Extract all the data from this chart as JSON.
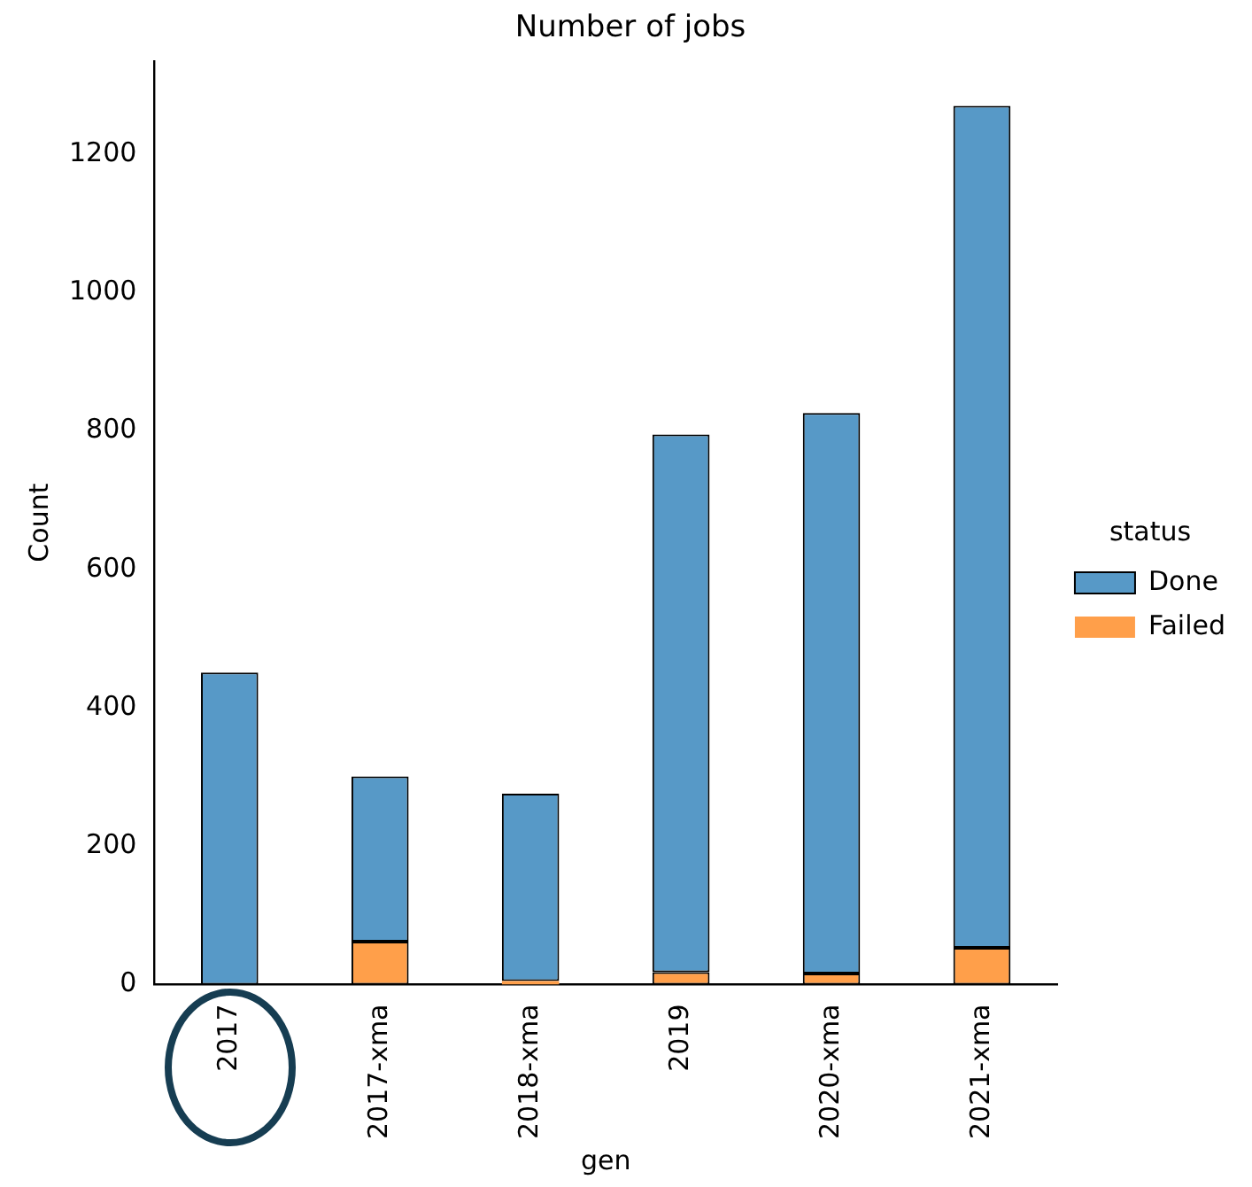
{
  "chart_data": {
    "type": "bar",
    "title": "Number of jobs",
    "xlabel": "gen",
    "ylabel": "Count",
    "legend_title": "status",
    "categories": [
      "2017",
      "2017-xma",
      "2018-xma",
      "2019",
      "2020-xma",
      "2021-xma"
    ],
    "stacked": true,
    "series": [
      {
        "name": "Failed",
        "color": "#ff9f4a",
        "values": [
          0,
          62,
          5,
          18,
          16,
          53
        ]
      },
      {
        "name": "Done",
        "color": "#5799c7",
        "values": [
          451,
          239,
          271,
          777,
          810,
          1217
        ]
      }
    ],
    "ylim": [
      0,
      1335
    ],
    "yticks": [
      0,
      200,
      400,
      600,
      800,
      1000,
      1200
    ],
    "grid": false,
    "legend": "right"
  }
}
